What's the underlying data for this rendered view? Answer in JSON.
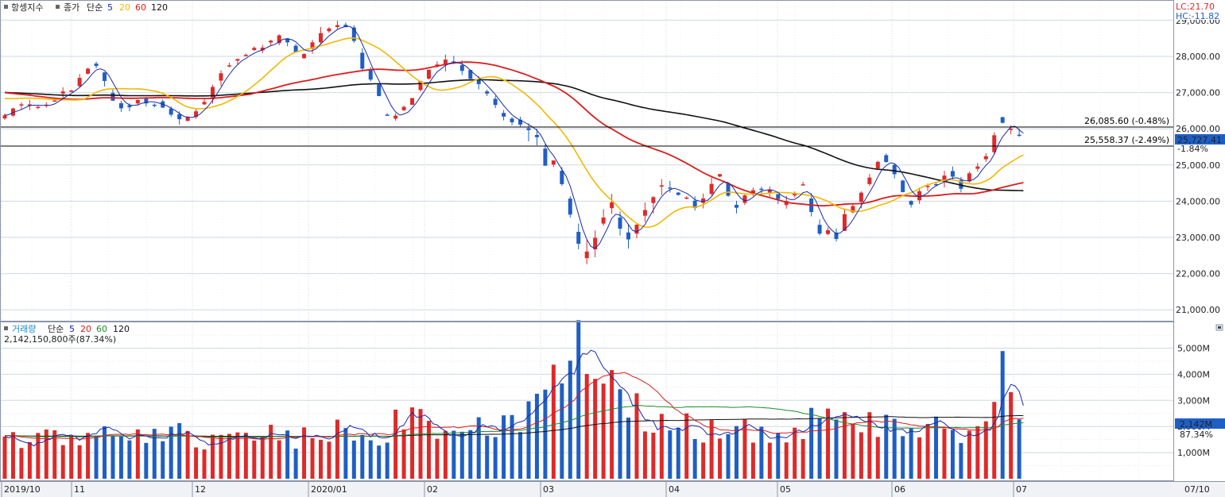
{
  "colors": {
    "up": "#dd2a2a",
    "down": "#1f5fc4",
    "ma5": "#1a2aa8",
    "ma20": "#f2b800",
    "ma60": "#dd1c1c",
    "ma120": "#111111",
    "vol_ma60": "#1d8c2a",
    "grid": "#cfd8e2",
    "badge_bg": "#1f5fc4"
  },
  "price_panel": {
    "legend": {
      "name": "항셍지수",
      "price_type": "종가",
      "ma_type": "단순",
      "ma5": "5",
      "ma20": "20",
      "ma60": "60",
      "ma120": "120"
    },
    "lc": "LC:21.70",
    "hc": "HC:-11.82",
    "hline1_label": "26,085.60 (-0.48%)",
    "hline2_label": "25,558.37 (-2.49%)",
    "current_value": "25,727.41",
    "current_change": "-1.84%",
    "y_ticks": [
      "28,000.00",
      "27,000.00",
      "26,000.00",
      "25,000.00",
      "24,000.00",
      "23,000.00",
      "22,000.00",
      "21,000.00"
    ],
    "top_tick_partial": "29,000.00"
  },
  "volume_panel": {
    "legend": {
      "name": "거래량",
      "ma_type": "단순",
      "ma5": "5",
      "ma20": "20",
      "ma60": "60",
      "ma120": "120"
    },
    "current_text": "2,142,150,800주(87.34%)",
    "current_value": "2,142M",
    "current_ratio": "87.34%",
    "y_ticks": [
      "5,000M",
      "4,000M",
      "3,000M",
      "2,000M",
      "1,000M"
    ]
  },
  "x_labels": [
    "2019/10",
    "11",
    "12",
    "2020/01",
    "02",
    "03",
    "04",
    "05",
    "06",
    "07"
  ],
  "cursor_date": "07/10",
  "chart_data": {
    "type": "candlestick",
    "title": "항셍지수",
    "y_range_price": [
      20600,
      29400
    ],
    "y_range_volume": [
      0,
      5600
    ],
    "volume_unit": "M",
    "grid": true,
    "price_keypoints": [
      [
        0,
        26400
      ],
      [
        5,
        26700
      ],
      [
        10,
        26600
      ],
      [
        13,
        26900
      ],
      [
        17,
        27200
      ],
      [
        20,
        27700
      ],
      [
        22,
        27800
      ],
      [
        25,
        27000
      ],
      [
        28,
        26500
      ],
      [
        32,
        26800
      ],
      [
        36,
        26700
      ],
      [
        40,
        26400
      ],
      [
        43,
        26200
      ],
      [
        46,
        26500
      ],
      [
        49,
        26900
      ],
      [
        53,
        27700
      ],
      [
        58,
        28100
      ],
      [
        62,
        28300
      ],
      [
        67,
        28600
      ],
      [
        71,
        28000
      ],
      [
        76,
        28600
      ],
      [
        80,
        28900
      ],
      [
        83,
        28800
      ],
      [
        86,
        27700
      ],
      [
        89,
        27200
      ],
      [
        91,
        26500
      ],
      [
        93,
        26300
      ],
      [
        97,
        26700
      ],
      [
        100,
        27300
      ],
      [
        103,
        27700
      ],
      [
        107,
        27900
      ],
      [
        111,
        27500
      ],
      [
        114,
        27200
      ],
      [
        117,
        26800
      ],
      [
        120,
        26300
      ],
      [
        123,
        26200
      ],
      [
        126,
        26000
      ],
      [
        128,
        25700
      ],
      [
        130,
        25000
      ],
      [
        132,
        25100
      ],
      [
        134,
        24500
      ],
      [
        136,
        23600
      ],
      [
        139,
        22500
      ],
      [
        141,
        22700
      ],
      [
        143,
        23400
      ],
      [
        146,
        23900
      ],
      [
        148,
        23200
      ],
      [
        150,
        23000
      ],
      [
        152,
        23400
      ],
      [
        155,
        24000
      ],
      [
        158,
        24500
      ],
      [
        160,
        24300
      ],
      [
        163,
        24200
      ],
      [
        166,
        23800
      ],
      [
        169,
        24300
      ],
      [
        172,
        24800
      ],
      [
        174,
        24100
      ],
      [
        176,
        23800
      ],
      [
        178,
        24100
      ],
      [
        181,
        24400
      ],
      [
        184,
        24300
      ],
      [
        187,
        23900
      ],
      [
        190,
        24200
      ],
      [
        192,
        24500
      ],
      [
        194,
        23700
      ],
      [
        196,
        23100
      ],
      [
        198,
        23200
      ],
      [
        200,
        22900
      ],
      [
        202,
        23600
      ],
      [
        205,
        24000
      ],
      [
        208,
        24700
      ],
      [
        211,
        25200
      ],
      [
        213,
        25000
      ],
      [
        216,
        24300
      ],
      [
        218,
        23900
      ],
      [
        221,
        24400
      ],
      [
        224,
        24500
      ],
      [
        227,
        24800
      ],
      [
        230,
        24300
      ],
      [
        233,
        24900
      ],
      [
        235,
        25100
      ],
      [
        237,
        25300
      ],
      [
        239,
        26300
      ],
      [
        241,
        26000
      ],
      [
        243,
        25950
      ],
      [
        245,
        25727
      ]
    ],
    "volume_keypoints": [
      [
        0,
        1500
      ],
      [
        5,
        1600
      ],
      [
        10,
        1500
      ],
      [
        15,
        1650
      ],
      [
        20,
        1800
      ],
      [
        25,
        1700
      ],
      [
        30,
        1650
      ],
      [
        35,
        1500
      ],
      [
        40,
        1750
      ],
      [
        45,
        1600
      ],
      [
        50,
        1500
      ],
      [
        55,
        1600
      ],
      [
        60,
        1500
      ],
      [
        65,
        1700
      ],
      [
        70,
        1600
      ],
      [
        75,
        1650
      ],
      [
        80,
        1800
      ],
      [
        85,
        1900
      ],
      [
        90,
        1700
      ],
      [
        95,
        2200
      ],
      [
        100,
        2300
      ],
      [
        105,
        2000
      ],
      [
        110,
        1600
      ],
      [
        115,
        1900
      ],
      [
        120,
        2100
      ],
      [
        125,
        2500
      ],
      [
        128,
        3000
      ],
      [
        130,
        3800
      ],
      [
        133,
        4200
      ],
      [
        136,
        4500
      ],
      [
        139,
        5200
      ],
      [
        142,
        4100
      ],
      [
        145,
        3700
      ],
      [
        148,
        3200
      ],
      [
        150,
        2700
      ],
      [
        153,
        2500
      ],
      [
        156,
        2300
      ],
      [
        160,
        2000
      ],
      [
        165,
        1950
      ],
      [
        170,
        1900
      ],
      [
        175,
        1900
      ],
      [
        180,
        1850
      ],
      [
        185,
        1800
      ],
      [
        190,
        1700
      ],
      [
        194,
        2200
      ],
      [
        198,
        2800
      ],
      [
        201,
        3000
      ],
      [
        203,
        2500
      ],
      [
        206,
        2300
      ],
      [
        210,
        2100
      ],
      [
        215,
        2000
      ],
      [
        220,
        2050
      ],
      [
        225,
        1950
      ],
      [
        230,
        1700
      ],
      [
        235,
        1800
      ],
      [
        238,
        2600
      ],
      [
        240,
        4600
      ],
      [
        242,
        3800
      ],
      [
        244,
        2500
      ],
      [
        245,
        2142
      ]
    ]
  }
}
